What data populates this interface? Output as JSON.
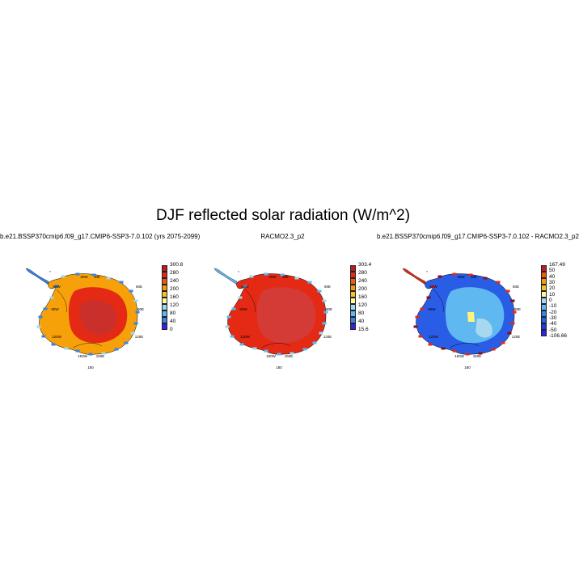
{
  "title": "DJF reflected solar radiation (W/m^2)",
  "colors": {
    "scale_abs": [
      "#3d1dee",
      "#3b82e6",
      "#5fb8f0",
      "#9fd8ef",
      "#fff9a0",
      "#f7c518",
      "#f89a08",
      "#f05a0f",
      "#e42a15",
      "#c21a1a"
    ],
    "scale_diff": [
      "#3d1dee",
      "#1a3ee0",
      "#2a5de6",
      "#3b82e6",
      "#5fb8f0",
      "#a7d8ef",
      "#fff9a0",
      "#f7c518",
      "#f89a08",
      "#f05a0f",
      "#c21a1a"
    ]
  },
  "chart_data": [
    {
      "type": "heatmap",
      "projection": "south-polar-stereographic",
      "subtitle": "b.e21.BSSP370cmip6.f09_g17.CMIP6-SSP3-7.0.102 (yrs 2075-2099)",
      "colorbar": {
        "levels": [
          "300.8",
          "280",
          "240",
          "200",
          "160",
          "120",
          "80",
          "40",
          "0"
        ]
      },
      "lon_labels": [
        "30W",
        "30E",
        "60W",
        "60E",
        "90W",
        "90E",
        "120W",
        "120E",
        "150W",
        "150E",
        "180"
      ],
      "dominant_pattern": "interior ~260-280, outer ice sheet 200-240, margins lower"
    },
    {
      "type": "heatmap",
      "projection": "south-polar-stereographic",
      "subtitle": "RACMO2.3_p2",
      "colorbar": {
        "levels": [
          "303.4",
          "280",
          "240",
          "200",
          "160",
          "120",
          "80",
          "40",
          "15.6"
        ]
      },
      "lon_labels": [
        "30W",
        "30E",
        "60W",
        "60E",
        "90W",
        "90E",
        "120W",
        "120E",
        "150W",
        "150E",
        "180"
      ],
      "dominant_pattern": "nearly uniform ~260-280 over ice sheet, coastal fringe lower"
    },
    {
      "type": "heatmap",
      "projection": "south-polar-stereographic",
      "subtitle": "b.e21.BSSP370cmip6.f09_g17.CMIP6-SSP3-7.0.102 - RACMO2.3_p2",
      "colorbar": {
        "levels": [
          "167.49",
          "50",
          "40",
          "30",
          "20",
          "10",
          "0",
          "-10",
          "-20",
          "-30",
          "-40",
          "-50",
          "-106.66"
        ]
      },
      "lon_labels": [
        "30W",
        "30E",
        "60W",
        "60E",
        "90W",
        "90E",
        "120W",
        "120E",
        "150W",
        "150E",
        "180"
      ],
      "dominant_pattern": "mostly -20 to -40 over ice sheet, near 0 in a central patch, positive along coastal rim"
    }
  ]
}
